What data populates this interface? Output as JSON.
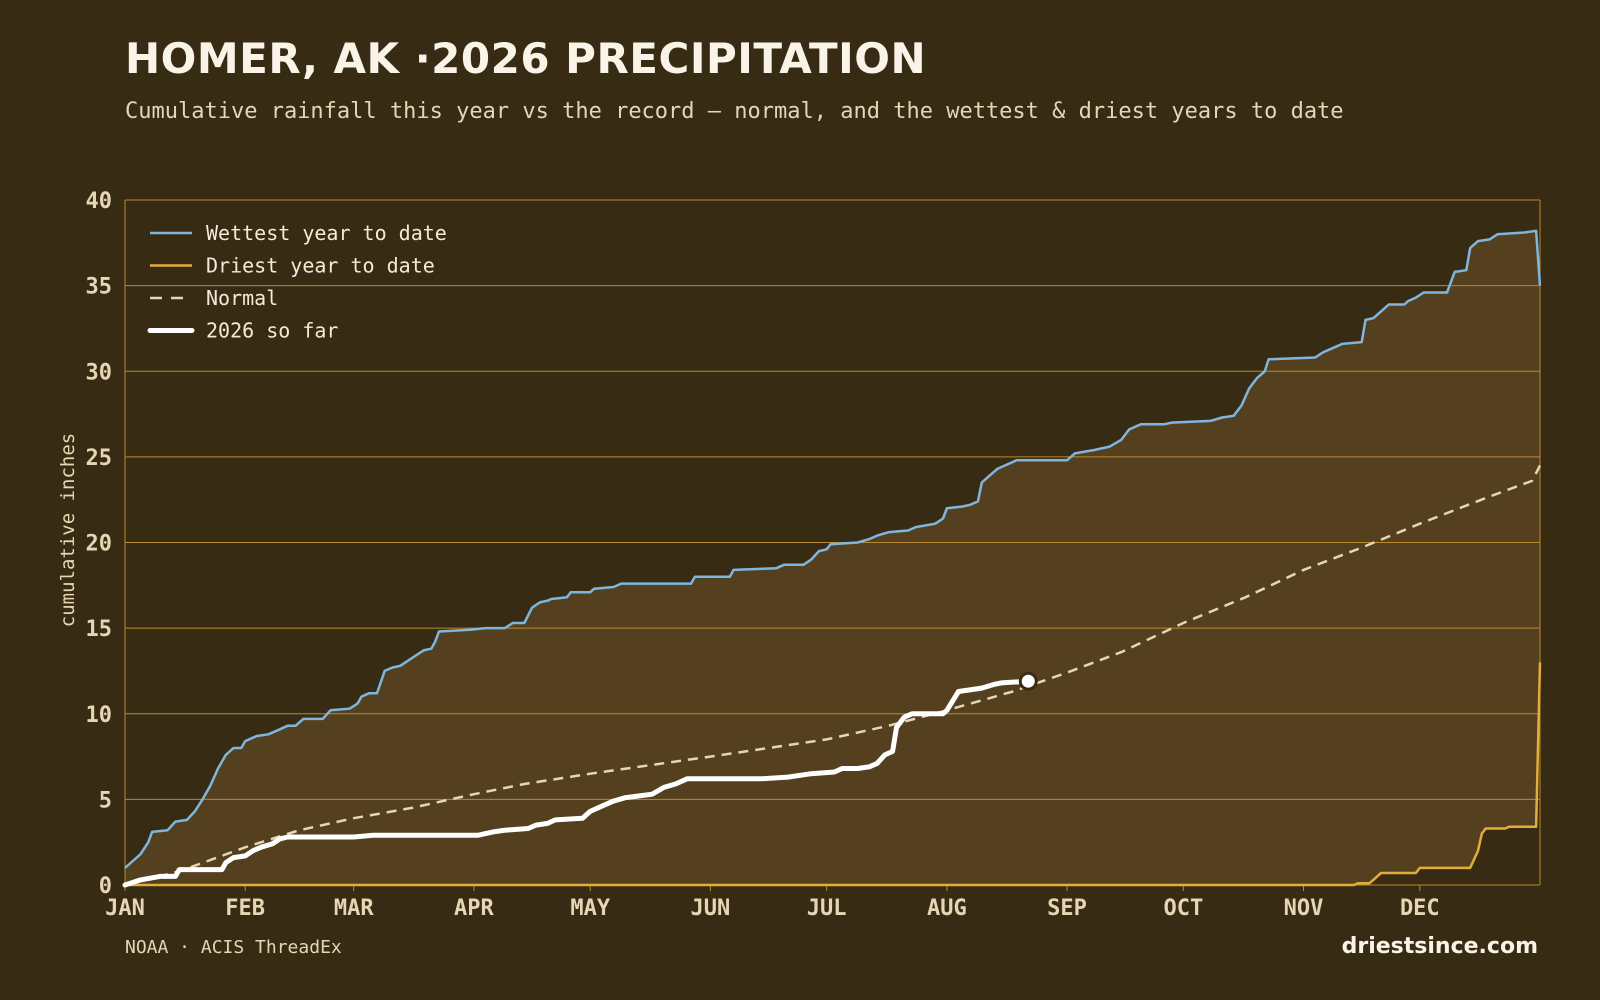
{
  "title": "HOMER, AK ·2026 PRECIPITATION",
  "subtitle": "Cumulative rainfall this year vs the record — normal, and the wettest & driest years to date",
  "source": "NOAA · ACIS ThreadEx",
  "brand": "driestsince.com",
  "colors": {
    "background": "#382b14",
    "band_fill": "#54401e",
    "grid": "#b98a2e",
    "wettest": "#7fb6de",
    "driest": "#e3ad3c",
    "normal": "#e6d6b4",
    "current": "#ffffff",
    "tick_text": "#e6d6b4"
  },
  "chart_data": {
    "type": "line",
    "ylabel": "cumulative inches",
    "xlabel": "",
    "ylim": [
      0,
      40
    ],
    "yticks": [
      "0",
      "5",
      "10",
      "15",
      "20",
      "25",
      "30",
      "35",
      "40"
    ],
    "xlim": [
      1,
      366
    ],
    "x_unit": "day of year",
    "month_ticks": [
      {
        "label": "JAN",
        "day": 1
      },
      {
        "label": "FEB",
        "day": 32
      },
      {
        "label": "MAR",
        "day": 60
      },
      {
        "label": "APR",
        "day": 91
      },
      {
        "label": "MAY",
        "day": 121
      },
      {
        "label": "JUN",
        "day": 152
      },
      {
        "label": "JUL",
        "day": 182
      },
      {
        "label": "AUG",
        "day": 213
      },
      {
        "label": "SEP",
        "day": 244
      },
      {
        "label": "OCT",
        "day": 274
      },
      {
        "label": "NOV",
        "day": 305
      },
      {
        "label": "DEC",
        "day": 335
      }
    ],
    "grid": true,
    "legend_position": "top-left",
    "series": [
      {
        "name": "Wettest year to date",
        "style": "solid",
        "color": "#7fb6de",
        "points": [
          [
            1,
            1.0
          ],
          [
            3,
            1.4
          ],
          [
            5,
            1.8
          ],
          [
            7,
            2.5
          ],
          [
            8,
            3.1
          ],
          [
            12,
            3.2
          ],
          [
            14,
            3.7
          ],
          [
            17,
            3.8
          ],
          [
            19,
            4.3
          ],
          [
            21,
            5.0
          ],
          [
            23,
            5.8
          ],
          [
            25,
            6.8
          ],
          [
            27,
            7.6
          ],
          [
            29,
            8.0
          ],
          [
            31,
            8.0
          ],
          [
            32,
            8.4
          ],
          [
            35,
            8.7
          ],
          [
            38,
            8.8
          ],
          [
            41,
            9.1
          ],
          [
            43,
            9.3
          ],
          [
            45,
            9.3
          ],
          [
            47,
            9.7
          ],
          [
            52,
            9.7
          ],
          [
            54,
            10.2
          ],
          [
            59,
            10.3
          ],
          [
            61,
            10.6
          ],
          [
            62,
            11.0
          ],
          [
            64,
            11.2
          ],
          [
            66,
            11.2
          ],
          [
            68,
            12.5
          ],
          [
            70,
            12.7
          ],
          [
            72,
            12.8
          ],
          [
            74,
            13.1
          ],
          [
            76,
            13.4
          ],
          [
            78,
            13.7
          ],
          [
            80,
            13.8
          ],
          [
            81,
            14.2
          ],
          [
            82,
            14.8
          ],
          [
            90,
            14.9
          ],
          [
            94,
            15.0
          ],
          [
            99,
            15.0
          ],
          [
            101,
            15.3
          ],
          [
            104,
            15.3
          ],
          [
            106,
            16.2
          ],
          [
            108,
            16.5
          ],
          [
            110,
            16.6
          ],
          [
            111,
            16.7
          ],
          [
            115,
            16.8
          ],
          [
            116,
            17.1
          ],
          [
            121,
            17.1
          ],
          [
            122,
            17.3
          ],
          [
            127,
            17.4
          ],
          [
            129,
            17.6
          ],
          [
            147,
            17.6
          ],
          [
            148,
            18.0
          ],
          [
            157,
            18.0
          ],
          [
            158,
            18.4
          ],
          [
            169,
            18.5
          ],
          [
            171,
            18.7
          ],
          [
            176,
            18.7
          ],
          [
            178,
            19.0
          ],
          [
            180,
            19.5
          ],
          [
            182,
            19.6
          ],
          [
            183,
            19.9
          ],
          [
            190,
            20.0
          ],
          [
            193,
            20.2
          ],
          [
            195,
            20.4
          ],
          [
            198,
            20.6
          ],
          [
            203,
            20.7
          ],
          [
            205,
            20.9
          ],
          [
            210,
            21.1
          ],
          [
            212,
            21.4
          ],
          [
            213,
            22.0
          ],
          [
            217,
            22.1
          ],
          [
            219,
            22.2
          ],
          [
            221,
            22.4
          ],
          [
            222,
            23.5
          ],
          [
            224,
            23.9
          ],
          [
            226,
            24.3
          ],
          [
            231,
            24.8
          ],
          [
            244,
            24.8
          ],
          [
            246,
            25.2
          ],
          [
            251,
            25.4
          ],
          [
            255,
            25.6
          ],
          [
            258,
            26.0
          ],
          [
            260,
            26.6
          ],
          [
            263,
            26.9
          ],
          [
            269,
            26.9
          ],
          [
            271,
            27.0
          ],
          [
            281,
            27.1
          ],
          [
            284,
            27.3
          ],
          [
            287,
            27.4
          ],
          [
            289,
            28.0
          ],
          [
            291,
            29.0
          ],
          [
            293,
            29.6
          ],
          [
            295,
            30.0
          ],
          [
            296,
            30.7
          ],
          [
            308,
            30.8
          ],
          [
            310,
            31.1
          ],
          [
            313,
            31.4
          ],
          [
            315,
            31.6
          ],
          [
            320,
            31.7
          ],
          [
            321,
            33.0
          ],
          [
            323,
            33.1
          ],
          [
            325,
            33.5
          ],
          [
            327,
            33.9
          ],
          [
            331,
            33.9
          ],
          [
            332,
            34.1
          ],
          [
            334,
            34.3
          ],
          [
            336,
            34.6
          ],
          [
            342,
            34.6
          ],
          [
            344,
            35.8
          ],
          [
            347,
            35.9
          ],
          [
            348,
            37.2
          ],
          [
            350,
            37.6
          ],
          [
            353,
            37.7
          ],
          [
            355,
            38.0
          ],
          [
            362,
            38.1
          ],
          [
            365,
            38.2
          ],
          [
            366,
            35.0
          ]
        ]
      },
      {
        "name": "Driest year to date",
        "style": "solid",
        "color": "#e3ad3c",
        "points": [
          [
            1,
            0.0
          ],
          [
            318,
            0.0
          ],
          [
            319,
            0.1
          ],
          [
            322,
            0.1
          ],
          [
            323,
            0.3
          ],
          [
            324,
            0.5
          ],
          [
            325,
            0.7
          ],
          [
            334,
            0.7
          ],
          [
            335,
            1.0
          ],
          [
            348,
            1.0
          ],
          [
            349,
            1.5
          ],
          [
            350,
            2.0
          ],
          [
            351,
            3.0
          ],
          [
            352,
            3.3
          ],
          [
            357,
            3.3
          ],
          [
            358,
            3.4
          ],
          [
            365,
            3.4
          ],
          [
            366,
            13.0
          ]
        ]
      },
      {
        "name": "Normal",
        "style": "dashed",
        "color": "#e6d6b4",
        "points": [
          [
            1,
            0.0
          ],
          [
            15,
            0.8
          ],
          [
            32,
            2.2
          ],
          [
            46,
            3.2
          ],
          [
            60,
            3.9
          ],
          [
            75,
            4.5
          ],
          [
            91,
            5.3
          ],
          [
            104,
            5.9
          ],
          [
            121,
            6.5
          ],
          [
            152,
            7.5
          ],
          [
            182,
            8.5
          ],
          [
            198,
            9.3
          ],
          [
            213,
            10.2
          ],
          [
            230,
            11.3
          ],
          [
            244,
            12.4
          ],
          [
            258,
            13.6
          ],
          [
            274,
            15.3
          ],
          [
            290,
            16.8
          ],
          [
            305,
            18.4
          ],
          [
            320,
            19.7
          ],
          [
            335,
            21.1
          ],
          [
            352,
            22.6
          ],
          [
            364,
            23.6
          ],
          [
            366,
            24.5
          ]
        ]
      },
      {
        "name": "2026 so far",
        "style": "solid-thick",
        "color": "#ffffff",
        "points": [
          [
            1,
            0.0
          ],
          [
            5,
            0.3
          ],
          [
            10,
            0.5
          ],
          [
            14,
            0.5
          ],
          [
            15,
            0.9
          ],
          [
            26,
            0.9
          ],
          [
            27,
            1.3
          ],
          [
            29,
            1.6
          ],
          [
            32,
            1.7
          ],
          [
            34,
            2.0
          ],
          [
            36,
            2.2
          ],
          [
            39,
            2.4
          ],
          [
            41,
            2.7
          ],
          [
            43,
            2.8
          ],
          [
            60,
            2.8
          ],
          [
            65,
            2.9
          ],
          [
            92,
            2.9
          ],
          [
            94,
            3.0
          ],
          [
            96,
            3.1
          ],
          [
            99,
            3.2
          ],
          [
            105,
            3.3
          ],
          [
            107,
            3.5
          ],
          [
            110,
            3.6
          ],
          [
            112,
            3.8
          ],
          [
            119,
            3.9
          ],
          [
            121,
            4.3
          ],
          [
            124,
            4.6
          ],
          [
            127,
            4.9
          ],
          [
            130,
            5.1
          ],
          [
            137,
            5.3
          ],
          [
            140,
            5.7
          ],
          [
            143,
            5.9
          ],
          [
            146,
            6.2
          ],
          [
            165,
            6.2
          ],
          [
            172,
            6.3
          ],
          [
            178,
            6.5
          ],
          [
            184,
            6.6
          ],
          [
            186,
            6.8
          ],
          [
            190,
            6.8
          ],
          [
            193,
            6.9
          ],
          [
            195,
            7.1
          ],
          [
            197,
            7.6
          ],
          [
            199,
            7.8
          ],
          [
            200,
            9.2
          ],
          [
            202,
            9.8
          ],
          [
            204,
            10.0
          ],
          [
            212,
            10.0
          ],
          [
            213,
            10.2
          ],
          [
            216,
            11.3
          ],
          [
            222,
            11.5
          ],
          [
            225,
            11.7
          ],
          [
            227,
            11.8
          ],
          [
            234,
            11.9
          ]
        ]
      }
    ]
  }
}
